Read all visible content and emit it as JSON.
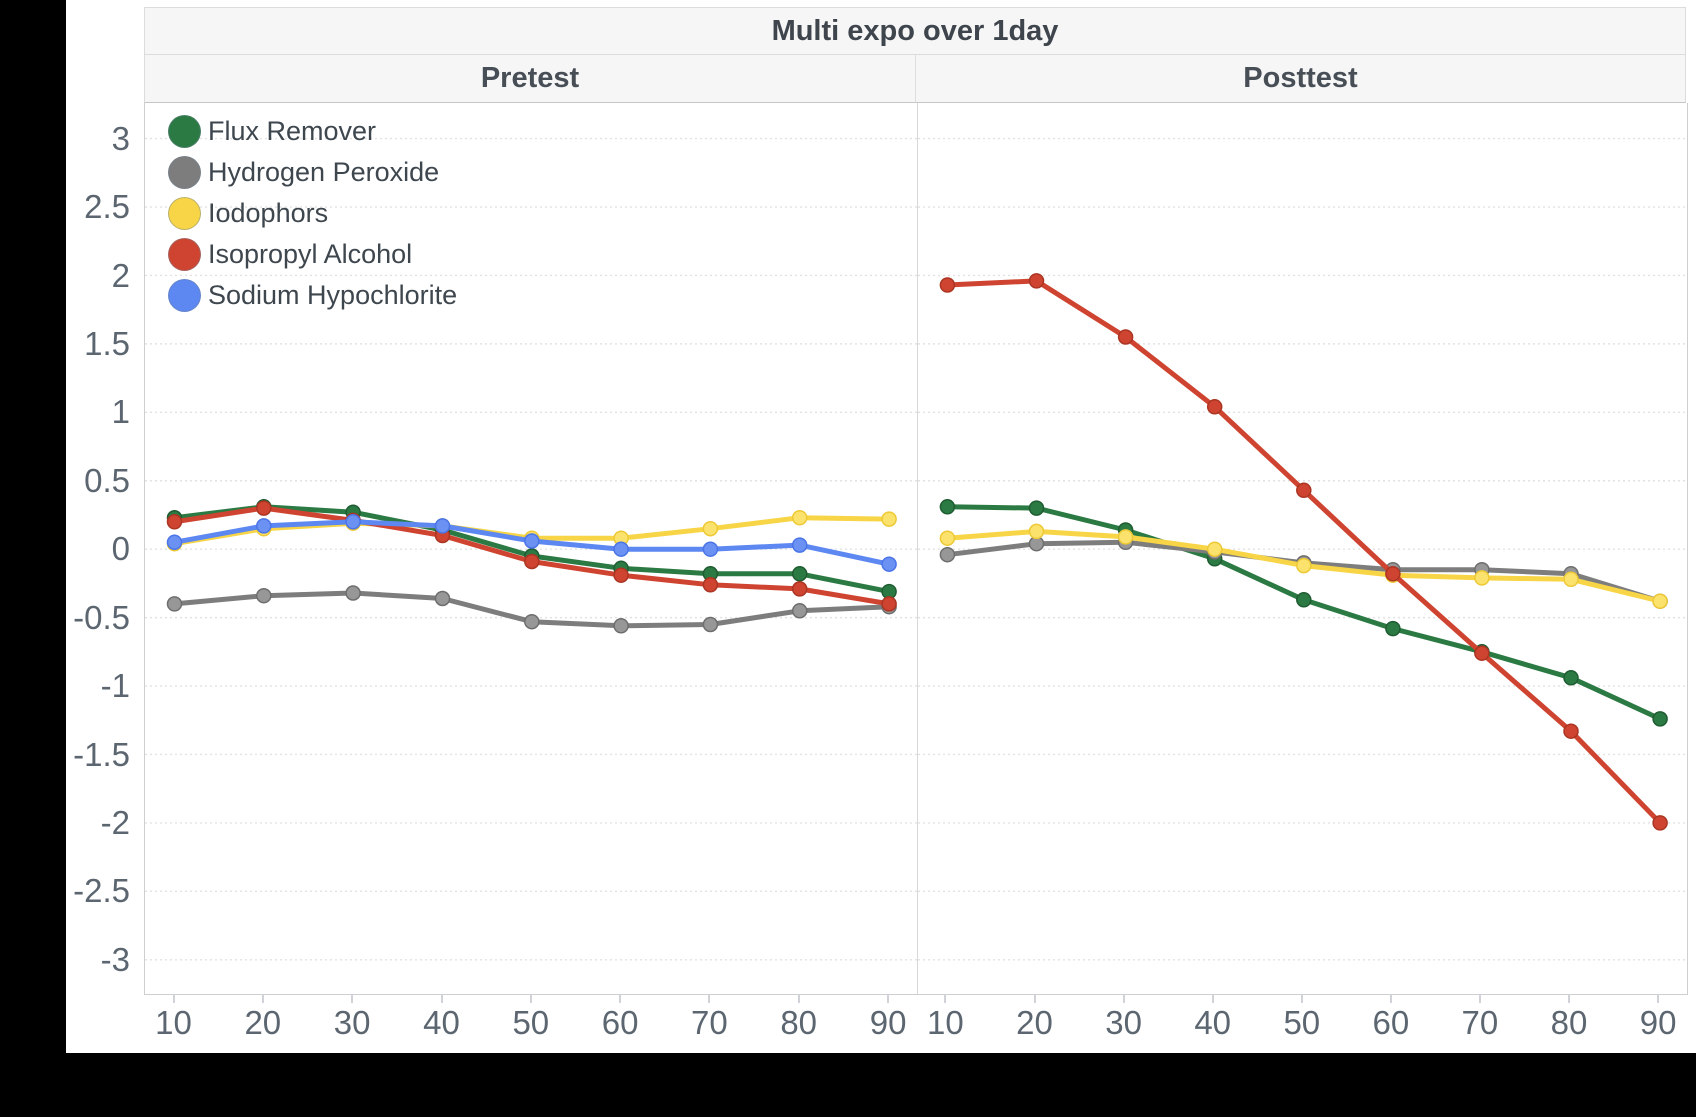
{
  "chart_data": {
    "type": "line",
    "title": "Multi expo over 1day",
    "facets": [
      "Pretest",
      "Posttest"
    ],
    "x": [
      10,
      20,
      30,
      40,
      50,
      60,
      70,
      80,
      90
    ],
    "x_tick_labels": [
      "10",
      "20",
      "30",
      "40",
      "50",
      "60",
      "70",
      "80",
      "90"
    ],
    "y_axis": {
      "min": -3.25,
      "max": 3.26,
      "ticks": [
        3,
        2.5,
        2,
        1.5,
        1,
        0.5,
        0,
        -0.5,
        -1,
        -1.5,
        -2,
        -2.5,
        -3
      ],
      "tick_labels": [
        "3",
        "2.5",
        "2",
        "1.5",
        "1",
        "0.5",
        "0",
        "-0.5",
        "-1",
        "-1.5",
        "-2",
        "-2.5",
        "-3"
      ],
      "grid": "dotted"
    },
    "legend_position": "top-left-inside",
    "series": [
      {
        "name": "Flux Remover",
        "color": "#2c7a43",
        "dot_fill": "#2c7a43",
        "dot_stroke": "#1f5c32",
        "pretest": [
          0.23,
          0.31,
          0.27,
          0.14,
          -0.05,
          -0.14,
          -0.18,
          -0.18,
          -0.31
        ],
        "posttest": [
          0.31,
          0.3,
          0.14,
          -0.07,
          -0.37,
          -0.58,
          -0.75,
          -0.94,
          -1.24
        ]
      },
      {
        "name": "Hydrogen Peroxide",
        "color": "#7d7d7d",
        "dot_fill": "#979797",
        "dot_stroke": "#6e6e6e",
        "pretest": [
          -0.4,
          -0.34,
          -0.32,
          -0.36,
          -0.53,
          -0.56,
          -0.55,
          -0.45,
          -0.42
        ],
        "posttest": [
          -0.04,
          0.04,
          0.05,
          -0.02,
          -0.1,
          -0.15,
          -0.15,
          -0.18,
          -0.38
        ]
      },
      {
        "name": "Iodophors",
        "color": "#f7d546",
        "dot_fill": "#fbe26d",
        "dot_stroke": "#eec935",
        "pretest": [
          0.04,
          0.15,
          0.19,
          0.17,
          0.08,
          0.08,
          0.15,
          0.23,
          0.22
        ],
        "posttest": [
          0.08,
          0.13,
          0.09,
          0.0,
          -0.12,
          -0.19,
          -0.21,
          -0.22,
          -0.38
        ]
      },
      {
        "name": "Isopropyl Alcohol",
        "color": "#cf4430",
        "dot_fill": "#cf4430",
        "dot_stroke": "#ab3523",
        "pretest": [
          0.2,
          0.3,
          0.21,
          0.1,
          -0.09,
          -0.19,
          -0.26,
          -0.29,
          -0.4
        ],
        "posttest": [
          1.93,
          1.96,
          1.55,
          1.04,
          0.43,
          -0.18,
          -0.76,
          -1.33,
          -2.0
        ]
      },
      {
        "name": "Sodium Hypochlorite",
        "color": "#5d87f1",
        "dot_fill": "#6b92f2",
        "dot_stroke": "#4a74e8",
        "pretest": [
          0.05,
          0.17,
          0.2,
          0.17,
          0.06,
          0.0,
          0.0,
          0.03,
          -0.11
        ],
        "posttest": null
      }
    ],
    "style": {
      "grid_color": "#e2e2e2",
      "axis_border_color": "#cfcfcf",
      "band_bg_color": "#f6f6f6",
      "tick_text_color": "#5c6670",
      "title_text_color": "#3f454d"
    }
  }
}
